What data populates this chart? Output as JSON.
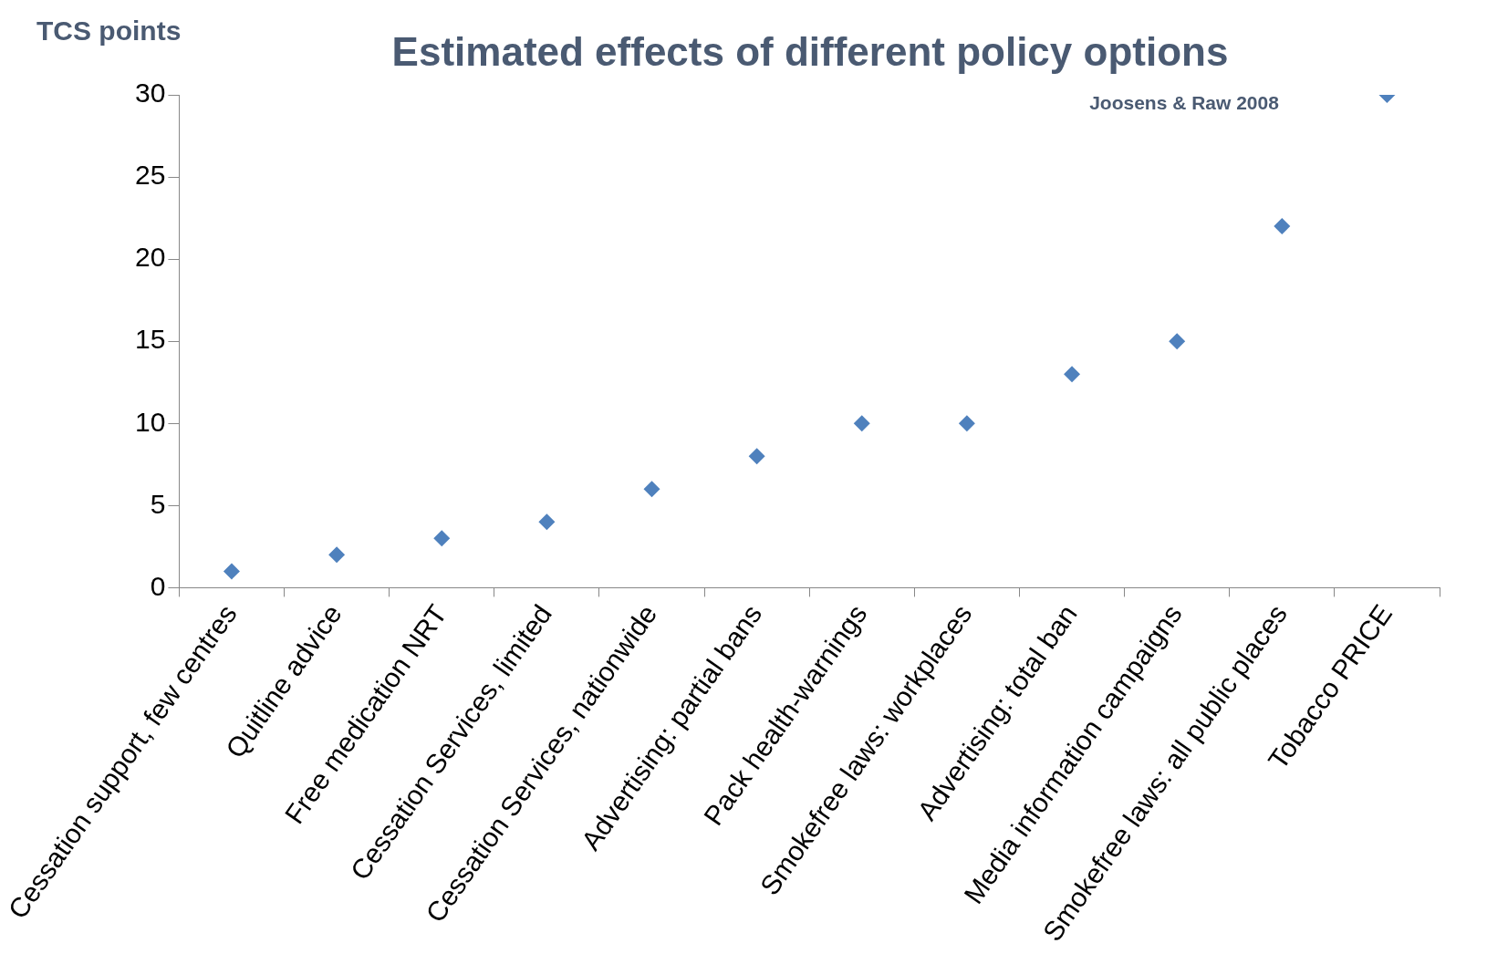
{
  "chart_data": {
    "type": "scatter",
    "title": "Estimated effects of different policy options",
    "ylabel": "TCS points",
    "annotations": [
      "Joosens & Raw 2008"
    ],
    "categories": [
      "Cessation support, few centres",
      "Quitline advice",
      "Free medication NRT",
      "Cessation Services, limited",
      "Cessation Services, nationwide",
      "Advertising: partial bans",
      "Pack health-warnings",
      "Smokefree laws: workplaces",
      "Advertising: total ban",
      "Media information campaigns",
      "Smokefree laws: all public places",
      "Tobacco PRICE"
    ],
    "values": [
      1,
      2,
      3,
      4,
      6,
      8,
      10,
      10,
      13,
      15,
      22,
      30
    ],
    "color": "#4f81bd",
    "marker": "diamond",
    "ylim": [
      0,
      30
    ],
    "yticks": [
      0,
      5,
      10,
      15,
      20,
      25,
      30
    ],
    "grid": false,
    "legend": false
  }
}
